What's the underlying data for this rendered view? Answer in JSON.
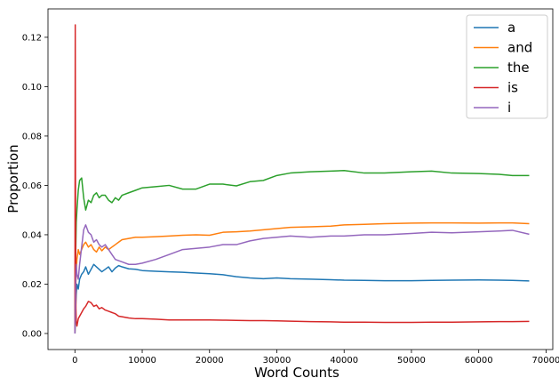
{
  "chart_data": {
    "type": "line",
    "title": "",
    "xlabel": "Word Counts",
    "ylabel": "Proportion",
    "xlim": [
      -4000,
      71000
    ],
    "ylim": [
      -0.0065,
      0.1315
    ],
    "xticks": [
      0,
      10000,
      20000,
      30000,
      40000,
      50000,
      60000,
      70000
    ],
    "xtick_labels": [
      "0",
      "10000",
      "20000",
      "30000",
      "40000",
      "50000",
      "60000",
      "70000"
    ],
    "yticks": [
      0.0,
      0.02,
      0.04,
      0.06,
      0.08,
      0.1,
      0.12
    ],
    "ytick_labels": [
      "0.00",
      "0.02",
      "0.04",
      "0.06",
      "0.08",
      "0.10",
      "0.12"
    ],
    "grid": false,
    "legend_position": "top-right",
    "series": [
      {
        "name": "a",
        "color": "#1f77b4",
        "x": [
          0,
          100,
          200,
          300,
          500,
          700,
          1000,
          1300,
          1600,
          2000,
          2400,
          2800,
          3200,
          3600,
          4000,
          4500,
          5000,
          5500,
          6000,
          6500,
          7000,
          8000,
          9000,
          10000,
          12000,
          14000,
          16000,
          18000,
          20000,
          22000,
          24000,
          26000,
          28000,
          30000,
          32000,
          35000,
          38000,
          40000,
          43000,
          46000,
          50000,
          53000,
          56000,
          60000,
          63000,
          65000,
          67500
        ],
        "y": [
          0.0,
          0.01,
          0.016,
          0.02,
          0.018,
          0.022,
          0.024,
          0.025,
          0.027,
          0.024,
          0.026,
          0.028,
          0.027,
          0.026,
          0.025,
          0.026,
          0.027,
          0.025,
          0.0265,
          0.0275,
          0.027,
          0.0262,
          0.026,
          0.0255,
          0.0252,
          0.025,
          0.0248,
          0.0245,
          0.0242,
          0.0238,
          0.023,
          0.0225,
          0.0222,
          0.0225,
          0.0222,
          0.022,
          0.0218,
          0.0216,
          0.0215,
          0.0214,
          0.0214,
          0.0215,
          0.0216,
          0.0217,
          0.0216,
          0.0215,
          0.0213
        ]
      },
      {
        "name": "and",
        "color": "#ff7f0e",
        "x": [
          0,
          100,
          200,
          300,
          500,
          700,
          1000,
          1300,
          1600,
          2000,
          2400,
          2800,
          3200,
          3600,
          4000,
          4500,
          5000,
          5500,
          6000,
          6500,
          7000,
          8000,
          9000,
          10000,
          12000,
          14000,
          16000,
          18000,
          20000,
          22000,
          24000,
          26000,
          28000,
          30000,
          32000,
          35000,
          38000,
          40000,
          43000,
          46000,
          50000,
          53000,
          56000,
          60000,
          63000,
          65000,
          67500
        ],
        "y": [
          0.0,
          0.018,
          0.025,
          0.03,
          0.034,
          0.032,
          0.034,
          0.036,
          0.037,
          0.035,
          0.036,
          0.034,
          0.033,
          0.035,
          0.0335,
          0.035,
          0.034,
          0.035,
          0.036,
          0.037,
          0.038,
          0.0385,
          0.039,
          0.039,
          0.0392,
          0.0395,
          0.0398,
          0.04,
          0.0398,
          0.041,
          0.0412,
          0.0415,
          0.042,
          0.0425,
          0.043,
          0.0432,
          0.0435,
          0.044,
          0.0442,
          0.0445,
          0.0447,
          0.0448,
          0.0448,
          0.0447,
          0.0448,
          0.0448,
          0.0445
        ]
      },
      {
        "name": "the",
        "color": "#2ca02c",
        "x": [
          0,
          100,
          200,
          300,
          500,
          700,
          1000,
          1300,
          1600,
          2000,
          2400,
          2800,
          3200,
          3600,
          4000,
          4500,
          5000,
          5500,
          6000,
          6500,
          7000,
          8000,
          9000,
          10000,
          12000,
          14000,
          16000,
          18000,
          20000,
          22000,
          24000,
          26000,
          28000,
          30000,
          32000,
          35000,
          38000,
          40000,
          43000,
          46000,
          50000,
          53000,
          56000,
          60000,
          63000,
          65000,
          67500
        ],
        "y": [
          0.0,
          0.03,
          0.045,
          0.05,
          0.058,
          0.062,
          0.063,
          0.055,
          0.05,
          0.054,
          0.053,
          0.056,
          0.057,
          0.055,
          0.056,
          0.056,
          0.054,
          0.053,
          0.055,
          0.054,
          0.056,
          0.057,
          0.058,
          0.059,
          0.0595,
          0.06,
          0.0585,
          0.0585,
          0.0605,
          0.0605,
          0.0598,
          0.0615,
          0.062,
          0.064,
          0.065,
          0.0655,
          0.0658,
          0.066,
          0.065,
          0.065,
          0.0655,
          0.0658,
          0.065,
          0.0648,
          0.0645,
          0.064,
          0.064
        ]
      },
      {
        "name": "is",
        "color": "#d62728",
        "x": [
          0,
          50,
          100,
          150,
          200,
          300,
          500,
          700,
          1000,
          1300,
          1600,
          2000,
          2400,
          2800,
          3200,
          3600,
          4000,
          4500,
          5000,
          5500,
          6000,
          6500,
          7000,
          8000,
          9000,
          10000,
          12000,
          14000,
          16000,
          18000,
          20000,
          22000,
          24000,
          26000,
          28000,
          30000,
          32000,
          35000,
          38000,
          40000,
          43000,
          46000,
          50000,
          53000,
          56000,
          60000,
          63000,
          65000,
          67500
        ],
        "y": [
          0.0,
          0.125,
          0.04,
          0.01,
          0.005,
          0.003,
          0.006,
          0.007,
          0.0085,
          0.01,
          0.011,
          0.013,
          0.0125,
          0.011,
          0.0115,
          0.01,
          0.0105,
          0.0095,
          0.009,
          0.0085,
          0.008,
          0.007,
          0.0068,
          0.0063,
          0.006,
          0.006,
          0.0058,
          0.0055,
          0.0055,
          0.0055,
          0.0055,
          0.0054,
          0.0053,
          0.0052,
          0.0052,
          0.0051,
          0.005,
          0.0048,
          0.0047,
          0.0046,
          0.0046,
          0.0045,
          0.0045,
          0.0046,
          0.0046,
          0.0047,
          0.0048,
          0.0048,
          0.0049
        ]
      },
      {
        "name": "i",
        "color": "#9467bd",
        "x": [
          0,
          100,
          200,
          300,
          500,
          700,
          1000,
          1300,
          1600,
          2000,
          2400,
          2800,
          3200,
          3600,
          4000,
          4500,
          5000,
          5500,
          6000,
          6500,
          7000,
          8000,
          9000,
          10000,
          12000,
          14000,
          16000,
          18000,
          20000,
          22000,
          24000,
          26000,
          28000,
          30000,
          32000,
          35000,
          38000,
          40000,
          43000,
          46000,
          50000,
          53000,
          56000,
          60000,
          63000,
          65000,
          67500
        ],
        "y": [
          0.0,
          0.02,
          0.028,
          0.024,
          0.022,
          0.028,
          0.035,
          0.042,
          0.044,
          0.041,
          0.04,
          0.037,
          0.038,
          0.036,
          0.035,
          0.036,
          0.034,
          0.032,
          0.03,
          0.0295,
          0.029,
          0.028,
          0.028,
          0.0285,
          0.03,
          0.032,
          0.034,
          0.0345,
          0.035,
          0.036,
          0.036,
          0.0375,
          0.0385,
          0.039,
          0.0395,
          0.039,
          0.0395,
          0.0395,
          0.04,
          0.04,
          0.0405,
          0.041,
          0.0408,
          0.0412,
          0.0415,
          0.0418,
          0.0402
        ]
      }
    ]
  }
}
